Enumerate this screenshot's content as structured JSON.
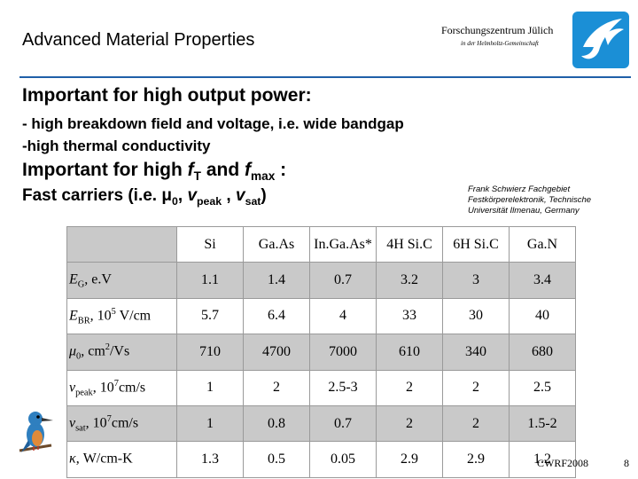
{
  "header": {
    "title": "Advanced Material Properties",
    "org_name": "Forschungszentrum Jülich",
    "org_subtitle": "in der Helmholtz-Gemeinschaft"
  },
  "content": {
    "heading1": "Important for high output power:",
    "bullet1": "- high breakdown field and voltage, i.e. wide bandgap",
    "bullet2": "-high thermal conductivity",
    "heading2_prefix": "Important for high ",
    "heading2_f1": "f",
    "heading2_f1_sub": "T",
    "heading2_and": " and ",
    "heading2_f2": "f",
    "heading2_f2_sub": "max",
    "heading2_suffix": " :",
    "heading3_prefix": "Fast carriers (i.e. ",
    "heading3_mu": "μ",
    "heading3_mu_sub": "0",
    "heading3_sep1": ", ",
    "heading3_v1": "v",
    "heading3_v1_sub": "peak",
    "heading3_sep2": " , ",
    "heading3_v2": "v",
    "heading3_v2_sub": "sat",
    "heading3_suffix": ")",
    "citation_line1": "Frank Schwierz Fachgebiet",
    "citation_line2": "Festkörperelektronik, Technische",
    "citation_line3": "Universität Ilmenau, Germany"
  },
  "table": {
    "columns": [
      "Si",
      "Ga.As",
      "In.Ga.As*",
      "4H Si.C",
      "6H Si.C",
      "Ga.N"
    ],
    "rows": [
      {
        "label_main": "E",
        "label_sub": "G",
        "label_tail": ", e.V",
        "label_sup": "",
        "label_after": "",
        "values": [
          "1.1",
          "1.4",
          "0.7",
          "3.2",
          "3",
          "3.4"
        ]
      },
      {
        "label_main": "E",
        "label_sub": "BR",
        "label_tail": ", 10",
        "label_sup": "5",
        "label_after": " V/cm",
        "values": [
          "5.7",
          "6.4",
          "4",
          "33",
          "30",
          "40"
        ]
      },
      {
        "label_main": "μ",
        "label_sub": "0",
        "label_tail": ", cm",
        "label_sup": "2",
        "label_after": "/Vs",
        "values": [
          "710",
          "4700",
          "7000",
          "610",
          "340",
          "680"
        ]
      },
      {
        "label_main": "v",
        "label_sub": "peak",
        "label_tail": ", 10",
        "label_sup": "7",
        "label_after": "cm/s",
        "values": [
          "1",
          "2",
          "2.5-3",
          "2",
          "2",
          "2.5"
        ]
      },
      {
        "label_main": "v",
        "label_sub": "sat",
        "label_tail": ", 10",
        "label_sup": "7",
        "label_after": "cm/s",
        "values": [
          "1",
          "0.8",
          "0.7",
          "2",
          "2",
          "1.5-2"
        ]
      },
      {
        "label_main": "κ",
        "label_sub": "",
        "label_tail": ", W/cm-K",
        "label_sup": "",
        "label_after": "",
        "values": [
          "1.3",
          "0.5",
          "0.05",
          "2.9",
          "2.9",
          "1.2"
        ]
      }
    ]
  },
  "footer": {
    "conference": "CWRF2008",
    "page_number": "8"
  },
  "colors": {
    "divider": "#1f5fa8",
    "table_grey": "#c9c9c9",
    "logo_blue": "#1b8fd6"
  },
  "icons": {
    "logo": "fz-juelich-logo",
    "bird": "kingfisher-bird-icon"
  }
}
